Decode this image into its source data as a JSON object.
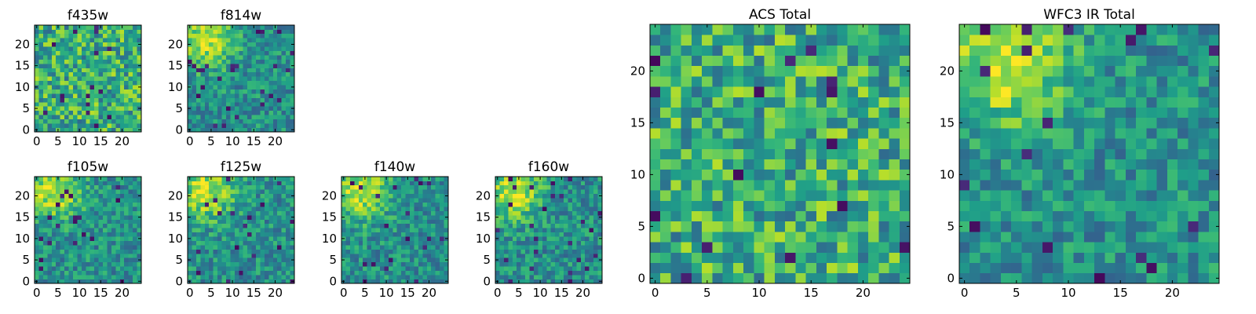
{
  "chart_data": [
    {
      "type": "heatmap",
      "title": "f435w",
      "grid_size": 25,
      "xlim": [
        0,
        24
      ],
      "ylim": [
        0,
        24
      ],
      "x_ticks": [
        0,
        5,
        10,
        15,
        20
      ],
      "y_ticks": [
        0,
        5,
        10,
        15,
        20
      ],
      "pattern": "uniform-noise",
      "seed": 11,
      "colormap": "viridis"
    },
    {
      "type": "heatmap",
      "title": "f814w",
      "grid_size": 25,
      "xlim": [
        0,
        24
      ],
      "ylim": [
        0,
        24
      ],
      "x_ticks": [
        0,
        5,
        10,
        15,
        20
      ],
      "y_ticks": [
        0,
        5,
        10,
        15,
        20
      ],
      "pattern": "bright-top-left",
      "seed": 23,
      "colormap": "viridis"
    },
    {
      "type": "heatmap",
      "title": "f105w",
      "grid_size": 25,
      "xlim": [
        0,
        24
      ],
      "ylim": [
        0,
        24
      ],
      "x_ticks": [
        0,
        5,
        10,
        15,
        20
      ],
      "y_ticks": [
        0,
        5,
        10,
        15,
        20
      ],
      "pattern": "bright-top-left",
      "seed": 37,
      "colormap": "viridis"
    },
    {
      "type": "heatmap",
      "title": "f125w",
      "grid_size": 25,
      "xlim": [
        0,
        24
      ],
      "ylim": [
        0,
        24
      ],
      "x_ticks": [
        0,
        5,
        10,
        15,
        20
      ],
      "y_ticks": [
        0,
        5,
        10,
        15,
        20
      ],
      "pattern": "bright-top-left",
      "seed": 41,
      "colormap": "viridis"
    },
    {
      "type": "heatmap",
      "title": "f140w",
      "grid_size": 25,
      "xlim": [
        0,
        24
      ],
      "ylim": [
        0,
        24
      ],
      "x_ticks": [
        0,
        5,
        10,
        15,
        20
      ],
      "y_ticks": [
        0,
        5,
        10,
        15,
        20
      ],
      "pattern": "bright-top-left",
      "seed": 53,
      "colormap": "viridis"
    },
    {
      "type": "heatmap",
      "title": "f160w",
      "grid_size": 25,
      "xlim": [
        0,
        24
      ],
      "ylim": [
        0,
        24
      ],
      "x_ticks": [
        0,
        5,
        10,
        15,
        20
      ],
      "y_ticks": [
        0,
        5,
        10,
        15,
        20
      ],
      "pattern": "bright-top-left",
      "seed": 67,
      "colormap": "viridis"
    },
    {
      "type": "heatmap",
      "title": "ACS Total",
      "grid_size": 25,
      "xlim": [
        0,
        24
      ],
      "ylim": [
        0,
        24
      ],
      "x_ticks": [
        0,
        5,
        10,
        15,
        20
      ],
      "y_ticks": [
        0,
        5,
        10,
        15,
        20
      ],
      "pattern": "uniform-noise",
      "seed": 79,
      "colormap": "viridis"
    },
    {
      "type": "heatmap",
      "title": "WFC3 IR Total",
      "grid_size": 25,
      "xlim": [
        0,
        24
      ],
      "ylim": [
        0,
        24
      ],
      "x_ticks": [
        0,
        5,
        10,
        15,
        20
      ],
      "y_ticks": [
        0,
        5,
        10,
        15,
        20
      ],
      "pattern": "bright-top-left",
      "seed": 97,
      "colormap": "viridis"
    }
  ]
}
